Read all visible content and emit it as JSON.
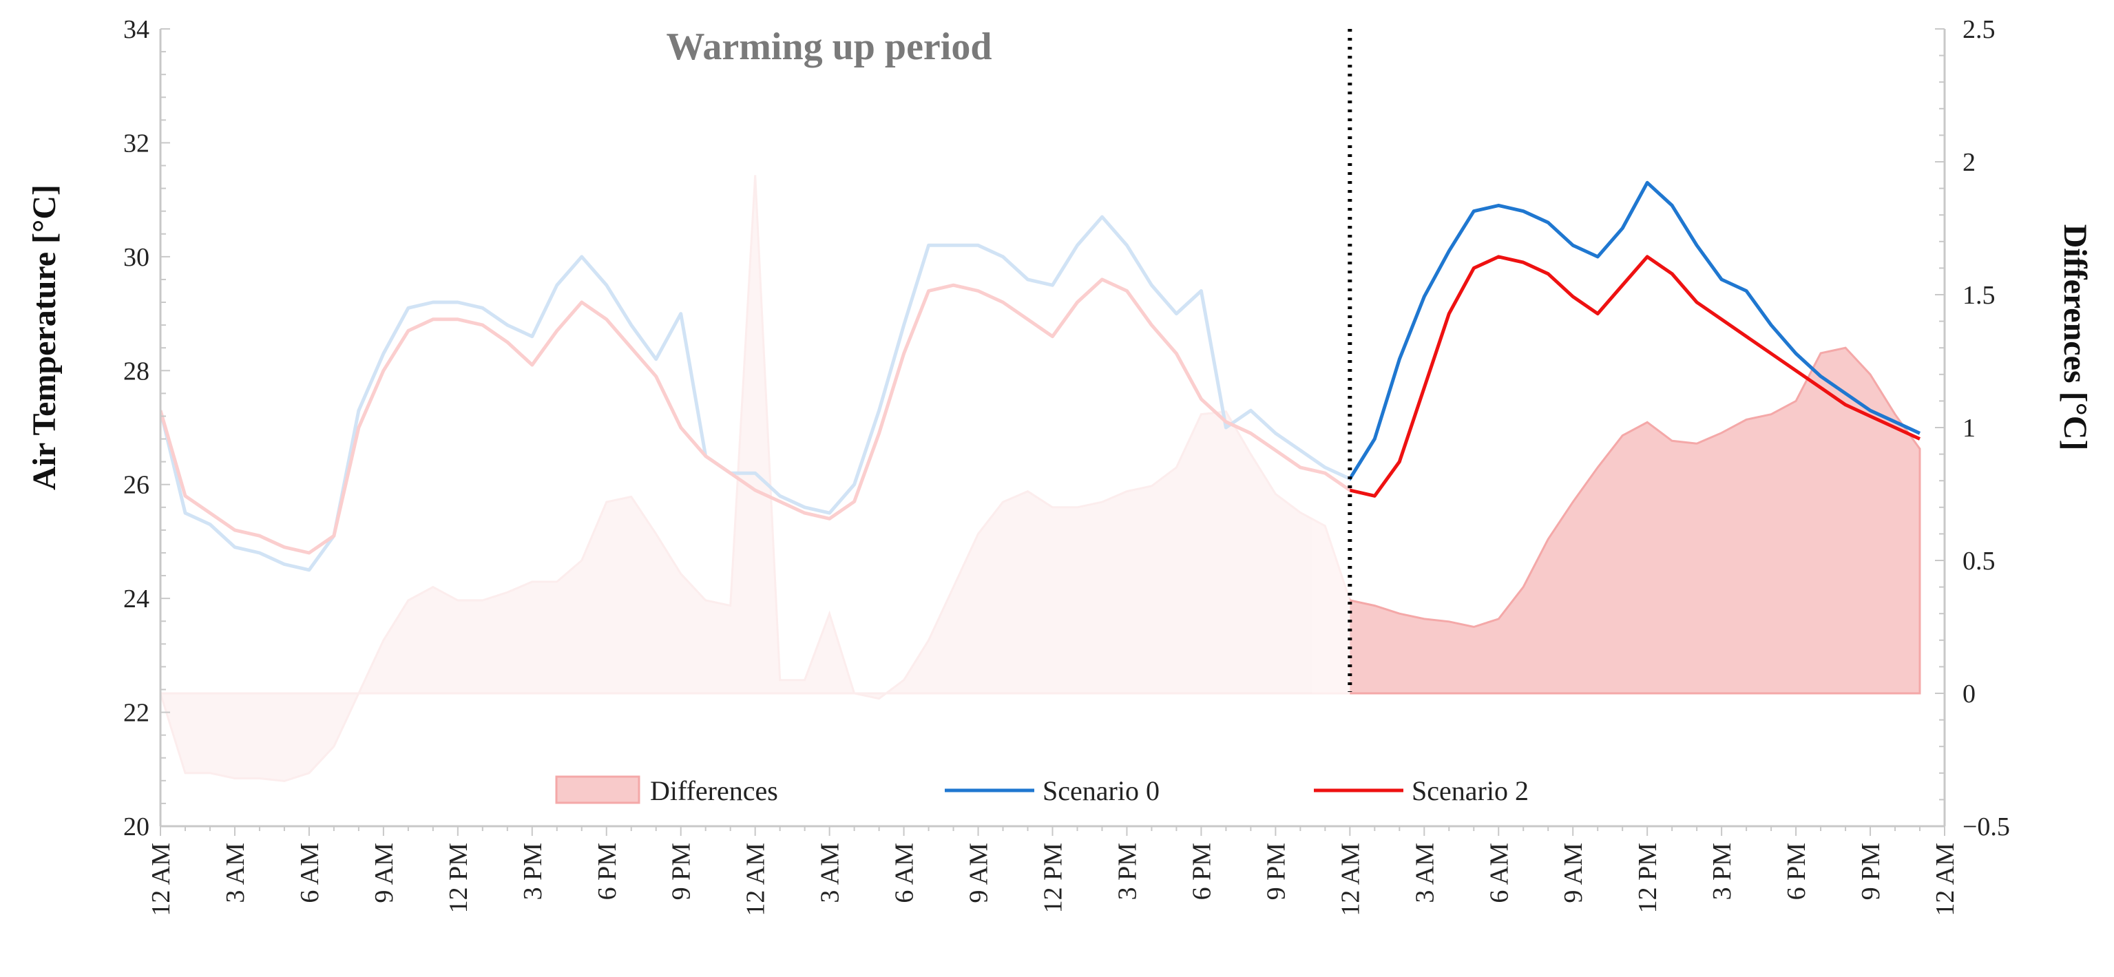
{
  "colors": {
    "scenario0": "#1f77d0",
    "scenario2": "#ee1111",
    "differences_fill": "#f8caca",
    "differences_stroke": "#f4a8a8",
    "axis": "#c8c8c8",
    "separator": "#000000"
  },
  "chart_data": {
    "type": "line",
    "title": "",
    "annotation": "Warming up period",
    "xlabel": "",
    "ylabel_left": "Air Temperature [°C]",
    "ylabel_right": "Differences [°C]",
    "ylim_left": [
      20,
      34
    ],
    "ylim_right": [
      -0.5,
      2.5
    ],
    "yticks_left": [
      20,
      22,
      24,
      26,
      28,
      30,
      32,
      34
    ],
    "yticks_right": [
      -0.5,
      0,
      0.5,
      1,
      1.5,
      2,
      2.5
    ],
    "yticks_right_labels": [
      "−0.5",
      "0",
      "0.5",
      "1",
      "1.5",
      "2",
      "2.5"
    ],
    "xlim_hours": [
      0,
      72
    ],
    "x_ticks_hours": [
      0,
      3,
      6,
      9,
      12,
      15,
      18,
      21,
      24,
      27,
      30,
      33,
      36,
      39,
      42,
      45,
      48,
      51,
      54,
      57,
      60,
      63,
      66,
      69,
      72
    ],
    "x_tick_labels": [
      "12 AM",
      "3 AM",
      "6 AM",
      "9 AM",
      "12 PM",
      "3 PM",
      "6 PM",
      "9 PM",
      "12 AM",
      "3 AM",
      "6 AM",
      "9 AM",
      "12 PM",
      "3 PM",
      "6 PM",
      "9 PM",
      "12 AM",
      "3 AM",
      "6 AM",
      "9 AM",
      "12 PM",
      "3 PM",
      "6 PM",
      "9 PM",
      "12 AM"
    ],
    "warmup_end_hour": 48,
    "grid": false,
    "legend_position": "bottom",
    "x_hours": [
      0,
      1,
      2,
      3,
      4,
      5,
      6,
      7,
      8,
      9,
      10,
      11,
      12,
      13,
      14,
      15,
      16,
      17,
      18,
      19,
      20,
      21,
      22,
      23,
      24,
      25,
      26,
      27,
      28,
      29,
      30,
      31,
      32,
      33,
      34,
      35,
      36,
      37,
      38,
      39,
      40,
      41,
      42,
      43,
      44,
      45,
      46,
      47,
      48,
      49,
      50,
      51,
      52,
      53,
      54,
      55,
      56,
      57,
      58,
      59,
      60,
      61,
      62,
      63,
      64,
      65,
      66,
      67,
      68,
      69,
      70,
      71
    ],
    "series": [
      {
        "name": "Differences",
        "axis": "right",
        "kind": "area",
        "values": [
          0.0,
          -0.3,
          -0.3,
          -0.32,
          -0.32,
          -0.33,
          -0.3,
          -0.2,
          0.0,
          0.2,
          0.35,
          0.4,
          0.35,
          0.35,
          0.38,
          0.42,
          0.42,
          0.5,
          0.72,
          0.74,
          0.6,
          0.45,
          0.35,
          0.33,
          1.95,
          0.05,
          0.05,
          0.3,
          0.0,
          -0.02,
          0.05,
          0.2,
          0.4,
          0.6,
          0.72,
          0.76,
          0.7,
          0.7,
          0.72,
          0.76,
          0.78,
          0.85,
          1.05,
          1.06,
          0.9,
          0.75,
          0.68,
          0.63,
          0.35,
          0.33,
          0.3,
          0.28,
          0.27,
          0.25,
          0.28,
          0.4,
          0.58,
          0.72,
          0.85,
          0.97,
          1.02,
          0.95,
          0.94,
          0.98,
          1.03,
          1.05,
          1.1,
          1.28,
          1.3,
          1.2,
          1.05,
          0.92
        ]
      },
      {
        "name": "Scenario 0",
        "axis": "left",
        "kind": "line",
        "values": [
          27.3,
          25.5,
          25.3,
          24.9,
          24.8,
          24.6,
          24.5,
          25.1,
          27.3,
          28.3,
          29.1,
          29.2,
          29.2,
          29.1,
          28.8,
          28.6,
          29.5,
          30.0,
          29.5,
          28.8,
          28.2,
          29.0,
          26.5,
          26.2,
          26.2,
          25.8,
          25.6,
          25.5,
          26.0,
          27.3,
          28.8,
          30.2,
          30.2,
          30.2,
          30.0,
          29.6,
          29.5,
          30.2,
          30.7,
          30.2,
          29.5,
          29.0,
          29.4,
          27.0,
          27.3,
          26.9,
          26.6,
          26.3,
          26.1,
          26.8,
          28.2,
          29.3,
          30.1,
          30.8,
          30.9,
          30.8,
          30.6,
          30.2,
          30.0,
          30.5,
          31.3,
          30.9,
          30.2,
          29.6,
          29.4,
          28.8,
          28.3,
          27.9,
          27.6,
          27.3,
          27.1,
          26.9
        ]
      },
      {
        "name": "Scenario 2",
        "axis": "left",
        "kind": "line",
        "values": [
          27.3,
          25.8,
          25.5,
          25.2,
          25.1,
          24.9,
          24.8,
          25.1,
          27.0,
          28.0,
          28.7,
          28.9,
          28.9,
          28.8,
          28.5,
          28.1,
          28.7,
          29.2,
          28.9,
          28.4,
          27.9,
          27.0,
          26.5,
          26.2,
          25.9,
          25.7,
          25.5,
          25.4,
          25.7,
          26.9,
          28.3,
          29.4,
          29.5,
          29.4,
          29.2,
          28.9,
          28.6,
          29.2,
          29.6,
          29.4,
          28.8,
          28.3,
          27.5,
          27.1,
          26.9,
          26.6,
          26.3,
          26.2,
          25.9,
          25.8,
          26.4,
          27.7,
          29.0,
          29.8,
          30.0,
          29.9,
          29.7,
          29.3,
          29.0,
          29.5,
          30.0,
          29.7,
          29.2,
          28.9,
          28.6,
          28.3,
          28.0,
          27.7,
          27.4,
          27.2,
          27.0,
          26.8
        ]
      }
    ]
  }
}
